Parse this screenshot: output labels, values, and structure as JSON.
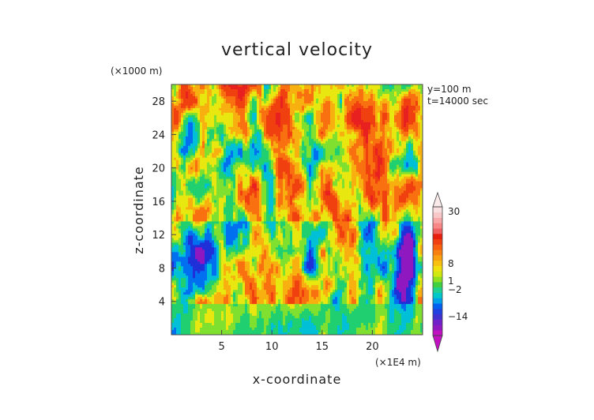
{
  "chart_data": {
    "type": "heatmap",
    "title": "vertical velocity",
    "xlabel": "x-coordinate",
    "ylabel": "z-coordinate",
    "x_unit": "(×1E4 m)",
    "y_unit": "(×1000 m)",
    "annotations": [
      "y=100 m",
      "t=14000 sec"
    ],
    "xlim": [
      0,
      25
    ],
    "ylim": [
      0,
      30
    ],
    "x_ticks": [
      5,
      10,
      15,
      20
    ],
    "y_ticks": [
      4,
      8,
      12,
      16,
      20,
      24,
      28
    ],
    "colorbar": {
      "label_values": [
        "30",
        "8",
        "1",
        "−2",
        "−14"
      ],
      "colors": [
        "#c010c0",
        "#9018c0",
        "#7020c8",
        "#4030d0",
        "#2040e0",
        "#0060f0",
        "#00a0e8",
        "#00c8c8",
        "#20d090",
        "#40d040",
        "#90e020",
        "#d0e810",
        "#f0e010",
        "#f8c010",
        "#f8a010",
        "#f88010",
        "#f86010",
        "#f04010",
        "#e82010",
        "#f06060",
        "#f88888",
        "#f8a8a8",
        "#f8c8c8",
        "#f8e0e0"
      ]
    },
    "field": {
      "description_values": "vertical velocity field, scale −14 to 30",
      "z_min": -14,
      "z_max": 30
    }
  }
}
